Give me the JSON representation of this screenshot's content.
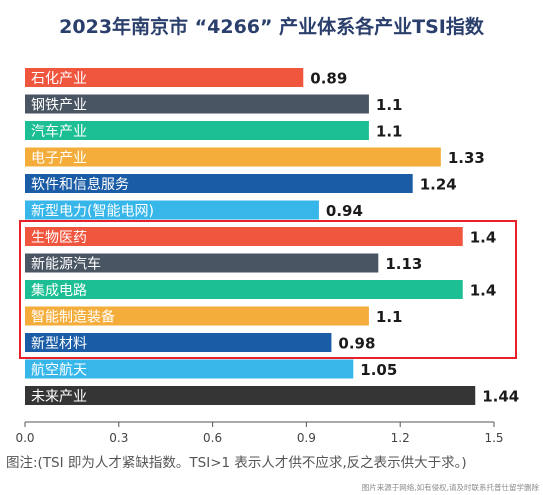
{
  "chart_data": {
    "type": "bar",
    "orientation": "horizontal",
    "title": "2023年南京市 “4266” 产业体系各产业TSI指数",
    "categories": [
      "石化产业",
      "钢铁产业",
      "汽车产业",
      "电子产业",
      "软件和信息服务",
      "新型电力(智能电网)",
      "生物医药",
      "新能源汽车",
      "集成电路",
      "智能制造装备",
      "新型材料",
      "航空航天",
      "未来产业"
    ],
    "values": [
      0.89,
      1.1,
      1.1,
      1.33,
      1.24,
      0.94,
      1.4,
      1.13,
      1.4,
      1.1,
      0.98,
      1.05,
      1.44
    ],
    "value_labels": [
      "0.89",
      "1.1",
      "1.1",
      "1.33",
      "1.24",
      "0.94",
      "1.4",
      "1.13",
      "1.4",
      "1.1",
      "0.98",
      "1.05",
      "1.44"
    ],
    "colors": [
      "#f0553e",
      "#4a5563",
      "#1bbf93",
      "#f4ad3b",
      "#1b5ca6",
      "#37b6ea",
      "#f0553e",
      "#4a5563",
      "#1bbf93",
      "#f4ad3b",
      "#1b5ca6",
      "#37b6ea",
      "#353535"
    ],
    "highlighted_categories": [
      "生物医药",
      "新能源汽车",
      "集成电路",
      "智能制造装备",
      "新型材料"
    ],
    "highlight_color": "#e8202a",
    "xlim": [
      0,
      1.5
    ],
    "xticks": [
      0.0,
      0.3,
      0.6,
      0.9,
      1.2,
      1.5
    ],
    "xtick_labels": [
      "0.0",
      "0.3",
      "0.6",
      "0.9",
      "1.2",
      "1.5"
    ],
    "grid": false,
    "xlabel": "",
    "ylabel": ""
  },
  "note": "图注:(TSI 即为人才紧缺指数。TSI>1 表示人才供不应求,反之表示供大于求。)",
  "credit": "图片来源于网络,如有侵权,请及时联系托普仕留学删除"
}
